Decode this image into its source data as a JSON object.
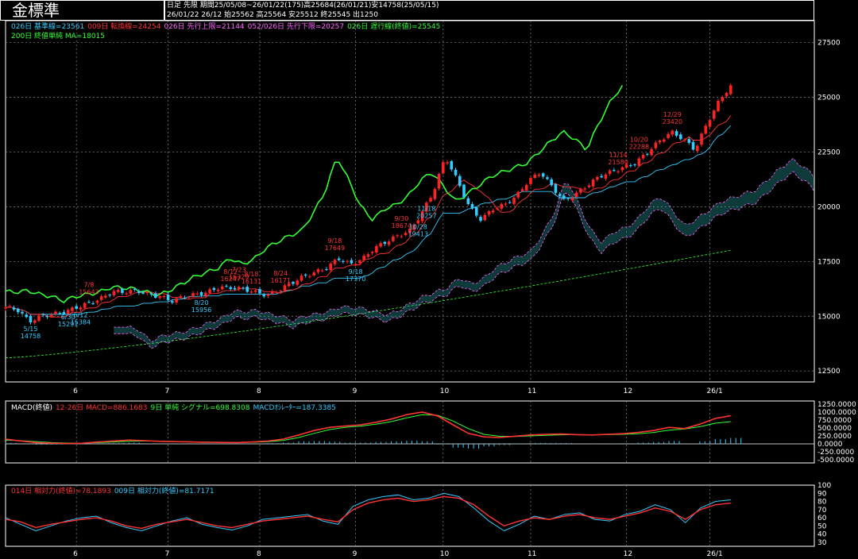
{
  "header": {
    "title": "金標準",
    "info_line1": "日足 先限 期間25/05/08~26/01/22(175)高25684(26/01/21)安14758(25/05/15)",
    "info_line2": "26/01/22 26/12 始25562 高25564 安25512 終25545 出1250"
  },
  "legend_main": {
    "line1": [
      {
        "text": "026日 基準線=23561",
        "color": "#33ccff"
      },
      {
        "text": "009日 転換線=24254",
        "color": "#ff3333"
      },
      {
        "text": "026日 先行上限=21144",
        "color": "#ff66ff"
      },
      {
        "text": "052/026日 先行下限=20257",
        "color": "#ff66ff"
      },
      {
        "text": "026日 遅行線(終値)=25545",
        "color": "#33ff33"
      }
    ],
    "line2": [
      {
        "text": "200日 終値単純 MA=18015",
        "color": "#33ff33"
      }
    ]
  },
  "legend_macd": [
    {
      "text": "MACD(終値)",
      "color": "#ffffff"
    },
    {
      "text": "12-26日 MACD=886.1683",
      "color": "#ff3333"
    },
    {
      "text": "9日 単純 シグナル=698.8308",
      "color": "#33ff33"
    },
    {
      "text": "MACDｵｼﾚｰﾀｰ=187.3385",
      "color": "#33ccff"
    }
  ],
  "legend_rsi": [
    {
      "text": "014日 相対力(終値)=78.1893",
      "color": "#ff3333"
    },
    {
      "text": "009日 相対力(終値)=81.7171",
      "color": "#33ccff"
    }
  ],
  "x_month_labels": [
    "6",
    "7",
    "8",
    "9",
    "10",
    "11",
    "12",
    "26/1"
  ],
  "colors": {
    "bull": "#ff2222",
    "bear": "#33ccff",
    "kijun": "#33ccff",
    "tenkan": "#ff3333",
    "chikou": "#33ff33",
    "ma200": "#33ff33",
    "cloud": "#ff66ff",
    "grid": "#888888"
  },
  "chart_data": [
    {
      "type": "candlestick",
      "title": "金標準",
      "y_ticks": [
        12500,
        15000,
        17500,
        20000,
        22500,
        25000,
        27500
      ],
      "ylim": [
        12000,
        28500
      ],
      "price_path": [
        15400,
        15300,
        14758,
        15000,
        15100,
        15200,
        15400,
        15600,
        15800,
        16131,
        16100,
        16171,
        16000,
        15900,
        15700,
        15900,
        16000,
        16100,
        16329,
        16300,
        16247,
        16100,
        15956,
        16200,
        16500,
        16800,
        17000,
        17200,
        17649,
        17370,
        17600,
        18100,
        18400,
        18674,
        18900,
        19700,
        20700,
        22288,
        21200,
        20000,
        19413,
        19900,
        20100,
        20500,
        21200,
        21580,
        20900,
        20257,
        20600,
        21000,
        21400,
        21600,
        21800,
        22000,
        22500,
        23000,
        23420,
        23100,
        22600,
        23800,
        24800,
        25545
      ],
      "annotations_high": [
        {
          "date": "7/8",
          "value": 15643
        },
        {
          "date": "8/18",
          "value": 16131
        },
        {
          "date": "8/24",
          "value": 16171
        },
        {
          "date": "7/23",
          "value": 16329
        },
        {
          "date": "8/12",
          "value": 16247
        },
        {
          "date": "9/18",
          "value": 17649
        },
        {
          "date": "9/30",
          "value": 18674
        },
        {
          "date": "10/20",
          "value": 22288
        },
        {
          "date": "11/14",
          "value": 21580
        },
        {
          "date": "12/29",
          "value": 23420
        }
      ],
      "annotations_low": [
        {
          "date": "5/15",
          "value": 14758
        },
        {
          "date": "6/12",
          "value": 15384
        },
        {
          "date": "6/30",
          "value": 15291
        },
        {
          "date": "8/20",
          "value": 15956
        },
        {
          "date": "9/18",
          "value": 17370
        },
        {
          "date": "10/28",
          "value": 19413
        },
        {
          "date": "11/18",
          "value": 20257
        }
      ],
      "indicators": {
        "kijun": 23561,
        "tenkan": 24254,
        "senkou_a": 21144,
        "senkou_b": 20257,
        "chikou": 25545,
        "ma200": 18015
      }
    },
    {
      "type": "line",
      "title": "MACD(終値)",
      "y_ticks": [
        -500,
        -250,
        0,
        250,
        500,
        750,
        1000,
        1250
      ],
      "tick_labels": [
        "-500.0000",
        "-250.0000",
        "0.0000",
        "250.0000",
        "500.0000",
        "750.0000",
        "1000.0000",
        "1250.0000"
      ],
      "macd_path": [
        150,
        90,
        40,
        20,
        10,
        20,
        60,
        90,
        120,
        100,
        80,
        70,
        60,
        50,
        45,
        40,
        60,
        90,
        150,
        280,
        420,
        520,
        560,
        600,
        680,
        780,
        920,
        1000,
        880,
        600,
        330,
        220,
        200,
        240,
        280,
        300,
        310,
        290,
        280,
        300,
        320,
        360,
        420,
        520,
        480,
        620,
        800,
        886
      ],
      "signal_path": [
        120,
        100,
        70,
        40,
        25,
        25,
        40,
        60,
        80,
        90,
        85,
        75,
        65,
        55,
        50,
        45,
        50,
        70,
        110,
        200,
        330,
        450,
        520,
        560,
        620,
        700,
        820,
        920,
        900,
        720,
        480,
        300,
        240,
        230,
        250,
        270,
        285,
        290,
        285,
        290,
        300,
        320,
        360,
        430,
        470,
        540,
        650,
        699
      ],
      "series": [
        {
          "name": "12-26日 MACD",
          "value": 886.1683
        },
        {
          "name": "9日 単純 シグナル",
          "value": 698.8308
        },
        {
          "name": "MACDｵｼﾚｰﾀｰ",
          "value": 187.3385
        }
      ]
    },
    {
      "type": "line",
      "title": "相対力",
      "y_ticks": [
        30,
        40,
        50,
        60,
        70,
        80,
        90,
        100
      ],
      "rsi14_path": [
        58,
        55,
        48,
        52,
        55,
        58,
        60,
        56,
        50,
        47,
        52,
        55,
        58,
        54,
        50,
        48,
        52,
        56,
        58,
        60,
        62,
        58,
        55,
        70,
        78,
        82,
        84,
        80,
        82,
        86,
        84,
        76,
        62,
        50,
        56,
        60,
        58,
        62,
        64,
        60,
        58,
        62,
        66,
        72,
        68,
        58,
        70,
        76,
        78
      ],
      "rsi9_path": [
        60,
        52,
        44,
        50,
        56,
        60,
        62,
        54,
        48,
        44,
        50,
        56,
        60,
        52,
        48,
        45,
        50,
        58,
        60,
        62,
        64,
        56,
        52,
        74,
        82,
        86,
        88,
        82,
        84,
        90,
        86,
        72,
        56,
        44,
        52,
        62,
        58,
        64,
        66,
        58,
        56,
        64,
        68,
        76,
        70,
        54,
        72,
        80,
        82
      ],
      "series": [
        {
          "name": "014日 相対力(終値)",
          "value": 78.1893
        },
        {
          "name": "009日 相対力(終値)",
          "value": 81.7171
        }
      ]
    }
  ]
}
